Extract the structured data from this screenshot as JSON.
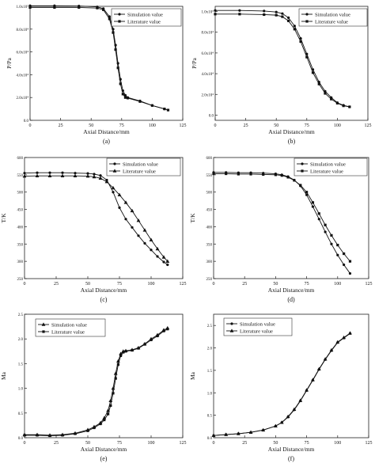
{
  "chart_data": [
    {
      "type": "line",
      "panel_label": "(a)",
      "xlabel": "Axial Distance/mm",
      "ylabel": "P/Pa",
      "xlim": [
        0,
        125
      ],
      "ylim": [
        0,
        100000
      ],
      "x_ticks": [
        "0",
        "25",
        "50",
        "75",
        "100",
        "125"
      ],
      "y_ticks": [
        "0.0",
        "2.0x10⁴",
        "4.0x10⁴",
        "6.0x10⁴",
        "8.0x10⁴",
        "1.0x10⁵"
      ],
      "y_tick_values": [
        0,
        20000,
        40000,
        60000,
        80000,
        100000
      ],
      "legend_position": "top-right",
      "series": [
        {
          "name": "Simulation value",
          "marker": "circle",
          "x": [
            0,
            20,
            40,
            55,
            60,
            65,
            68,
            70,
            72,
            74,
            76,
            78,
            80,
            90,
            100,
            110,
            113
          ],
          "y": [
            100500,
            100500,
            100300,
            99500,
            98000,
            91000,
            80000,
            66000,
            50000,
            36000,
            26000,
            22000,
            20000,
            17000,
            13000,
            10000,
            9000
          ]
        },
        {
          "name": "Literature value",
          "marker": "square",
          "x": [
            0,
            20,
            40,
            55,
            60,
            65,
            68,
            70,
            72,
            74,
            76,
            78,
            80,
            90,
            100,
            110,
            113
          ],
          "y": [
            99000,
            99000,
            99000,
            98500,
            97000,
            89000,
            77000,
            62000,
            46000,
            32000,
            23000,
            20000,
            19500,
            16500,
            13000,
            10000,
            9000
          ]
        }
      ]
    },
    {
      "type": "line",
      "panel_label": "(b)",
      "xlabel": "Axial Distance/mm",
      "ylabel": "P/Pa",
      "xlim": [
        0,
        125
      ],
      "ylim": [
        -5000,
        105000
      ],
      "x_ticks": [
        "0",
        "25",
        "50",
        "75",
        "100",
        "125"
      ],
      "y_ticks": [
        "0.0",
        "2.0x10⁴",
        "4.0x10⁴",
        "6.0x10⁴",
        "8.0x10⁴",
        "1.0x10⁵"
      ],
      "y_tick_values": [
        0,
        20000,
        40000,
        60000,
        80000,
        100000
      ],
      "legend_position": "top-right",
      "series": [
        {
          "name": "Simulation value",
          "marker": "circle",
          "x": [
            0,
            20,
            40,
            50,
            55,
            60,
            65,
            70,
            75,
            80,
            85,
            90,
            95,
            100,
            105,
            110
          ],
          "y": [
            101000,
            101000,
            100500,
            99500,
            98000,
            94000,
            86000,
            74000,
            59000,
            44000,
            32000,
            23000,
            17000,
            12000,
            9500,
            8000
          ]
        },
        {
          "name": "Literature value",
          "marker": "square",
          "x": [
            0,
            20,
            40,
            50,
            55,
            60,
            65,
            70,
            75,
            80,
            85,
            90,
            95,
            100,
            105,
            110
          ],
          "y": [
            97500,
            97500,
            97000,
            96500,
            95000,
            91000,
            83000,
            71000,
            56000,
            41000,
            30000,
            21000,
            15500,
            11500,
            9000,
            8000
          ]
        }
      ]
    },
    {
      "type": "line",
      "panel_label": "(c)",
      "xlabel": "Axial Distance/mm",
      "ylabel": "T/K",
      "xlim": [
        0,
        125
      ],
      "ylim": [
        250,
        600
      ],
      "x_ticks": [
        "0",
        "25",
        "50",
        "75",
        "100",
        "125"
      ],
      "y_ticks": [
        "250",
        "300",
        "350",
        "400",
        "450",
        "500",
        "550",
        "600"
      ],
      "y_tick_values": [
        250,
        300,
        350,
        400,
        450,
        500,
        550,
        600
      ],
      "legend_position": "top-right",
      "series": [
        {
          "name": "Simulation value",
          "marker": "circle",
          "x": [
            0,
            10,
            20,
            30,
            40,
            50,
            55,
            60,
            65,
            70,
            75,
            80,
            85,
            90,
            95,
            100,
            105,
            110,
            113
          ],
          "y": [
            555,
            556,
            556,
            556,
            555,
            554,
            552,
            548,
            535,
            500,
            455,
            422,
            398,
            374,
            352,
            333,
            314,
            298,
            290
          ]
        },
        {
          "name": "Literature value",
          "marker": "triangle",
          "x": [
            0,
            10,
            20,
            30,
            40,
            50,
            55,
            60,
            65,
            70,
            75,
            80,
            85,
            90,
            95,
            100,
            105,
            110,
            113
          ],
          "y": [
            546,
            547,
            547,
            547,
            547,
            546,
            544,
            540,
            530,
            512,
            492,
            470,
            446,
            418,
            390,
            362,
            336,
            312,
            300
          ]
        }
      ]
    },
    {
      "type": "line",
      "panel_label": "(d)",
      "xlabel": "Axial Distance/mm",
      "ylabel": "T/K",
      "xlim": [
        0,
        125
      ],
      "ylim": [
        250,
        600
      ],
      "x_ticks": [
        "0",
        "25",
        "50",
        "75",
        "100",
        "125"
      ],
      "y_ticks": [
        "250",
        "300",
        "350",
        "400",
        "450",
        "500",
        "550",
        "600"
      ],
      "y_tick_values": [
        250,
        300,
        350,
        400,
        450,
        500,
        550,
        600
      ],
      "legend_position": "top-right",
      "series": [
        {
          "name": "Simulation value",
          "marker": "circle",
          "x": [
            0,
            10,
            20,
            30,
            40,
            50,
            55,
            60,
            65,
            70,
            75,
            80,
            85,
            90,
            95,
            100,
            105,
            110
          ],
          "y": [
            557,
            557,
            556,
            556,
            555,
            553,
            550,
            545,
            535,
            518,
            492,
            458,
            422,
            385,
            350,
            318,
            290,
            265
          ]
        },
        {
          "name": "Literature value",
          "marker": "square",
          "x": [
            0,
            10,
            20,
            30,
            40,
            50,
            55,
            60,
            65,
            70,
            75,
            80,
            85,
            90,
            95,
            100,
            105,
            110
          ],
          "y": [
            553,
            553,
            552,
            552,
            551,
            550,
            548,
            543,
            534,
            520,
            500,
            470,
            438,
            405,
            375,
            347,
            322,
            300
          ]
        }
      ]
    },
    {
      "type": "line",
      "panel_label": "(e)",
      "xlabel": "Axial Distance/mm",
      "ylabel": "Ma",
      "xlim": [
        0,
        125
      ],
      "ylim": [
        0,
        2.5
      ],
      "x_ticks": [
        "0",
        "25",
        "50",
        "75",
        "100",
        "125"
      ],
      "y_ticks": [
        "0.0",
        "0.5",
        "1.0",
        "1.5",
        "2.0",
        "2.5"
      ],
      "y_tick_values": [
        0,
        0.5,
        1.0,
        1.5,
        2.0,
        2.5
      ],
      "legend_position": "top-left",
      "series": [
        {
          "name": "Simulation value",
          "marker": "triangle",
          "x": [
            0,
            10,
            20,
            30,
            40,
            50,
            55,
            60,
            63,
            66,
            68,
            70,
            72,
            74,
            76,
            78,
            80,
            85,
            90,
            95,
            100,
            105,
            110,
            113
          ],
          "y": [
            0.06,
            0.06,
            0.05,
            0.06,
            0.09,
            0.16,
            0.22,
            0.3,
            0.4,
            0.55,
            0.75,
            1.0,
            1.3,
            1.55,
            1.7,
            1.75,
            1.76,
            1.78,
            1.82,
            1.9,
            2.0,
            2.08,
            2.18,
            2.22
          ]
        },
        {
          "name": "Literature value",
          "marker": "square",
          "x": [
            0,
            10,
            20,
            30,
            40,
            50,
            55,
            60,
            63,
            66,
            68,
            70,
            72,
            74,
            76,
            78,
            80,
            85,
            90,
            95,
            100,
            105,
            110,
            113
          ],
          "y": [
            0.05,
            0.05,
            0.04,
            0.05,
            0.08,
            0.14,
            0.2,
            0.28,
            0.36,
            0.48,
            0.65,
            0.9,
            1.2,
            1.48,
            1.66,
            1.73,
            1.75,
            1.77,
            1.81,
            1.89,
            1.98,
            2.06,
            2.16,
            2.2
          ]
        }
      ]
    },
    {
      "type": "line",
      "panel_label": "(f)",
      "xlabel": "Axial Distance/mm",
      "ylabel": "Ma",
      "xlim": [
        0,
        125
      ],
      "ylim": [
        0,
        2.75
      ],
      "x_ticks": [
        "0",
        "25",
        "50",
        "75",
        "100",
        "125"
      ],
      "y_ticks": [
        "0.0",
        "0.5",
        "1.0",
        "1.5",
        "2.0",
        "2.5"
      ],
      "y_tick_values": [
        0,
        0.5,
        1.0,
        1.5,
        2.0,
        2.5
      ],
      "legend_position": "top-left",
      "series": [
        {
          "name": "Simulation value",
          "marker": "circle",
          "x": [
            0,
            10,
            20,
            30,
            40,
            50,
            55,
            60,
            65,
            70,
            75,
            80,
            85,
            90,
            95,
            100,
            105,
            110
          ],
          "y": [
            0.05,
            0.07,
            0.09,
            0.12,
            0.17,
            0.26,
            0.34,
            0.46,
            0.62,
            0.82,
            1.05,
            1.28,
            1.52,
            1.74,
            1.94,
            2.12,
            2.22,
            2.32
          ]
        },
        {
          "name": "Literature value",
          "marker": "triangle",
          "x": [
            0,
            10,
            20,
            30,
            40,
            50,
            55,
            60,
            65,
            70,
            75,
            80,
            85,
            90,
            95,
            100,
            105,
            110
          ],
          "y": [
            0.05,
            0.07,
            0.09,
            0.12,
            0.17,
            0.26,
            0.34,
            0.47,
            0.63,
            0.83,
            1.06,
            1.29,
            1.53,
            1.75,
            1.95,
            2.13,
            2.23,
            2.33
          ]
        }
      ]
    }
  ]
}
